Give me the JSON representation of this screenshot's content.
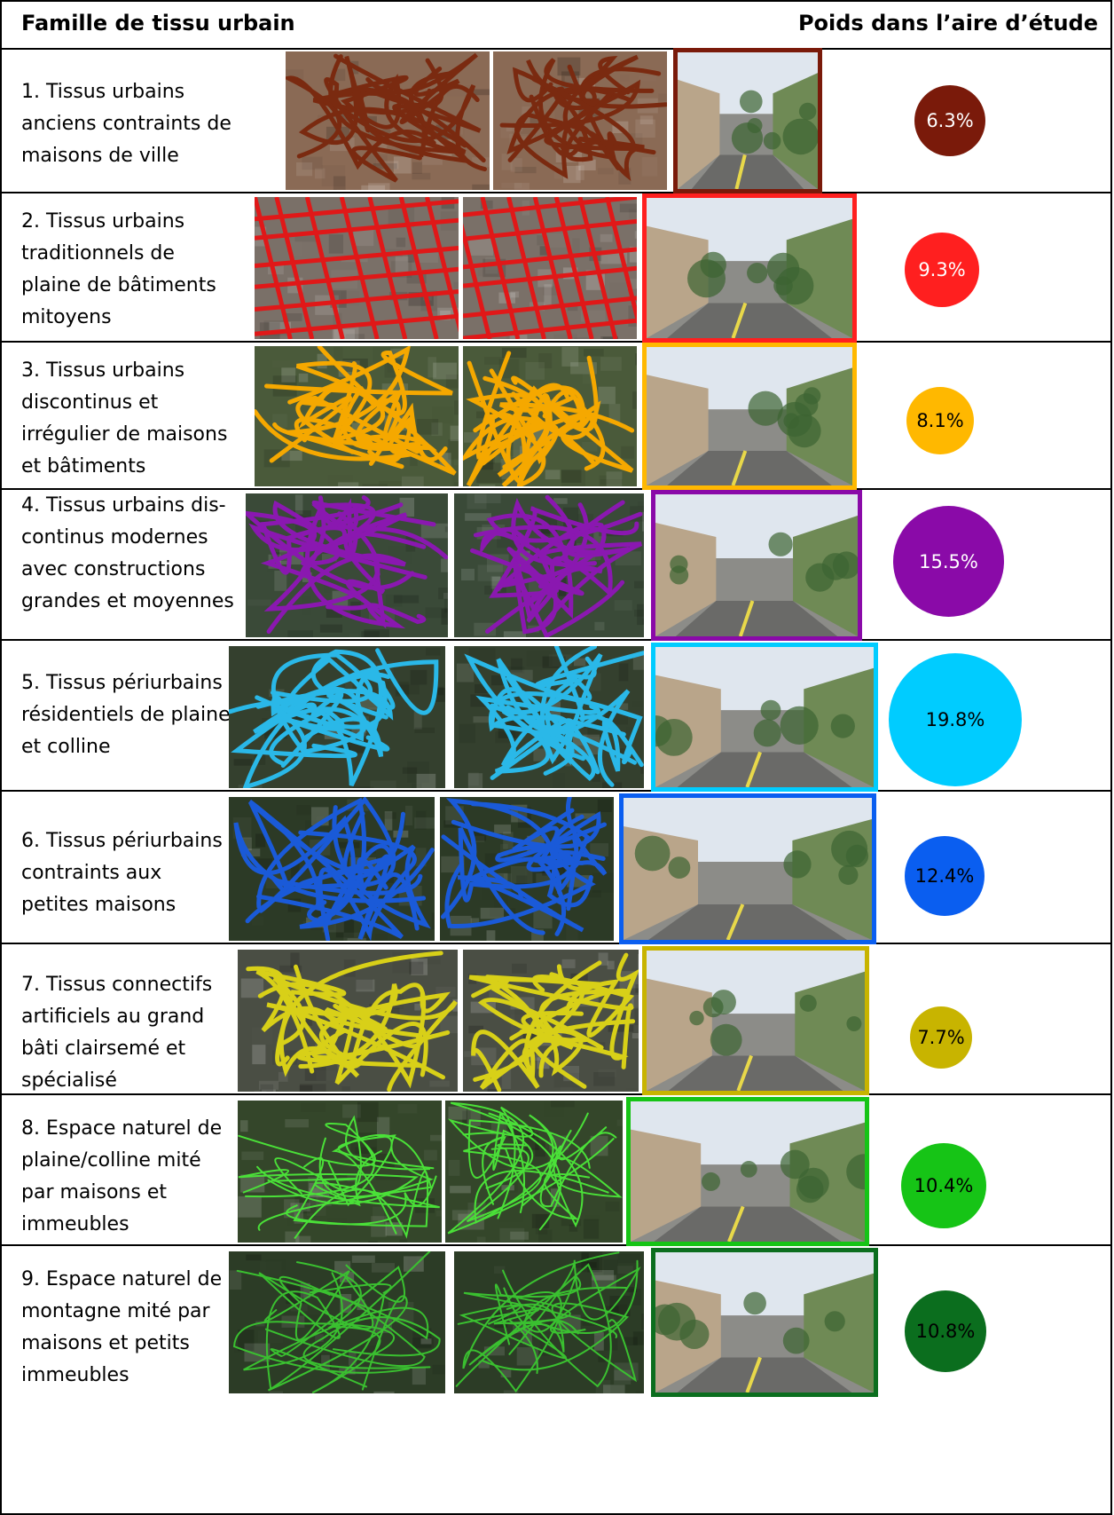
{
  "header": {
    "left": "Famille de tissu urbain",
    "right": "Poids dans l’aire d’étude"
  },
  "rows": [
    {
      "label": "1. Tissus urbains anciens contraints de maisons de ville",
      "percent": "6.3%",
      "color": "#7a1a0a",
      "text_color": "#ffffff",
      "map_base": "#8a6a55",
      "road_color": "#7a2a10"
    },
    {
      "label": "2. Tissus urbains traditionnels de plaine de bâtiments mitoyens",
      "percent": "9.3%",
      "color": "#ff1f1f",
      "text_color": "#ffffff",
      "map_base": "#7a7068",
      "road_color": "#e01818"
    },
    {
      "label": "3. Tissus urbains discontinus et irrégulier de maisons et bâtiments",
      "percent": "8.1%",
      "color": "#ffb800",
      "text_color": "#000000",
      "map_base": "#4a5a3a",
      "road_color": "#f5a800"
    },
    {
      "label": "4. Tissus urbains dis-continus modernes avec constructions grandes et moyennes",
      "percent": "15.5%",
      "color": "#8a0aa8",
      "text_color": "#ffffff",
      "map_base": "#3a4a38",
      "road_color": "#8a18b0"
    },
    {
      "label": "5. Tissus périurbains résidentiels de plaine et colline",
      "percent": "19.8%",
      "color": "#00ccff",
      "text_color": "#000000",
      "map_base": "#34402e",
      "road_color": "#2ab8e8"
    },
    {
      "label": "6. Tissus périurbains contraints aux petites maisons",
      "percent": "12.4%",
      "color": "#0a5ef0",
      "text_color": "#000000",
      "map_base": "#2c3a26",
      "road_color": "#1a5ad8"
    },
    {
      "label": "7. Tissus connectifs artificiels au grand bâti clairsemé et spécialisé",
      "percent": "7.7%",
      "color": "#c8b400",
      "text_color": "#000000",
      "map_base": "#4a4e44",
      "road_color": "#d8d018"
    },
    {
      "label": "8. Espace naturel de plaine/colline mité par maisons et immeubles",
      "percent": "10.4%",
      "color": "#16c416",
      "text_color": "#000000",
      "map_base": "#34462a",
      "road_color": "#4ae038"
    },
    {
      "label": "9. Espace naturel de montagne mité par maisons et petits immeubles",
      "percent": "10.8%",
      "color": "#0b6e1e",
      "text_color": "#000000",
      "map_base": "#2c3c26",
      "road_color": "#3ac030"
    }
  ]
}
